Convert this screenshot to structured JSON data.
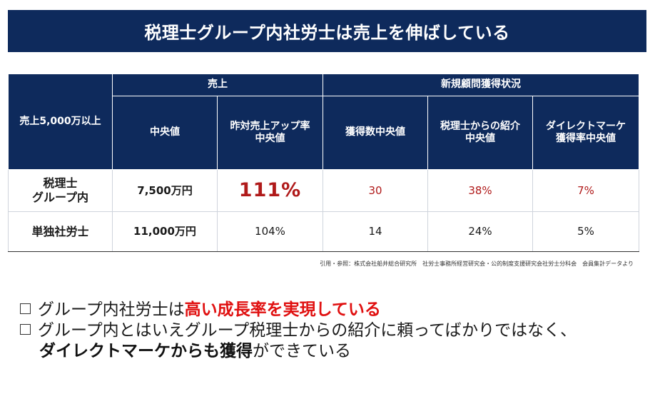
{
  "title": "税理士グループ内社労士は売上を伸ばしている",
  "table": {
    "corner_label": "売上5,000万以上",
    "group_sales": "売上",
    "group_new_clients": "新規顧問獲得状況",
    "col_median": "中央値",
    "col_yoy_line1": "昨対売上アップ率",
    "col_yoy_line2": "中央値",
    "col_acq": "獲得数中央値",
    "col_ref_line1": "税理士からの紹介",
    "col_ref_line2": "中央値",
    "col_direct_line1": "ダイレクトマーケ",
    "col_direct_line2": "獲得率中央値",
    "rows": [
      {
        "label_line1": "税理士",
        "label_line2": "グループ内",
        "median": "7,500万円",
        "yoy": "111%",
        "acq": "30",
        "ref": "38%",
        "direct": "7%"
      },
      {
        "label_line1": "単独社労士",
        "median": "11,000万円",
        "yoy": "104%",
        "acq": "14",
        "ref": "24%",
        "direct": "5%"
      }
    ]
  },
  "source": "引用・参照：株式会社船井総合研究所　社労士事務所経営研究会・公的制度支援研究会社労士分科会　会員集計データより",
  "bullets": {
    "b1_pre": "グループ内社労士は",
    "b1_hl": "高い成長率を実現している",
    "b2_line1": "グループ内とはいえグループ税理士からの紹介に頼ってばかりではなく、",
    "b2_hl": "ダイレクトマーケからも獲得",
    "b2_post": "ができている"
  },
  "colors": {
    "navy": "#0e2a5c",
    "red": "#b01a1a",
    "bright_red": "#e01010"
  }
}
